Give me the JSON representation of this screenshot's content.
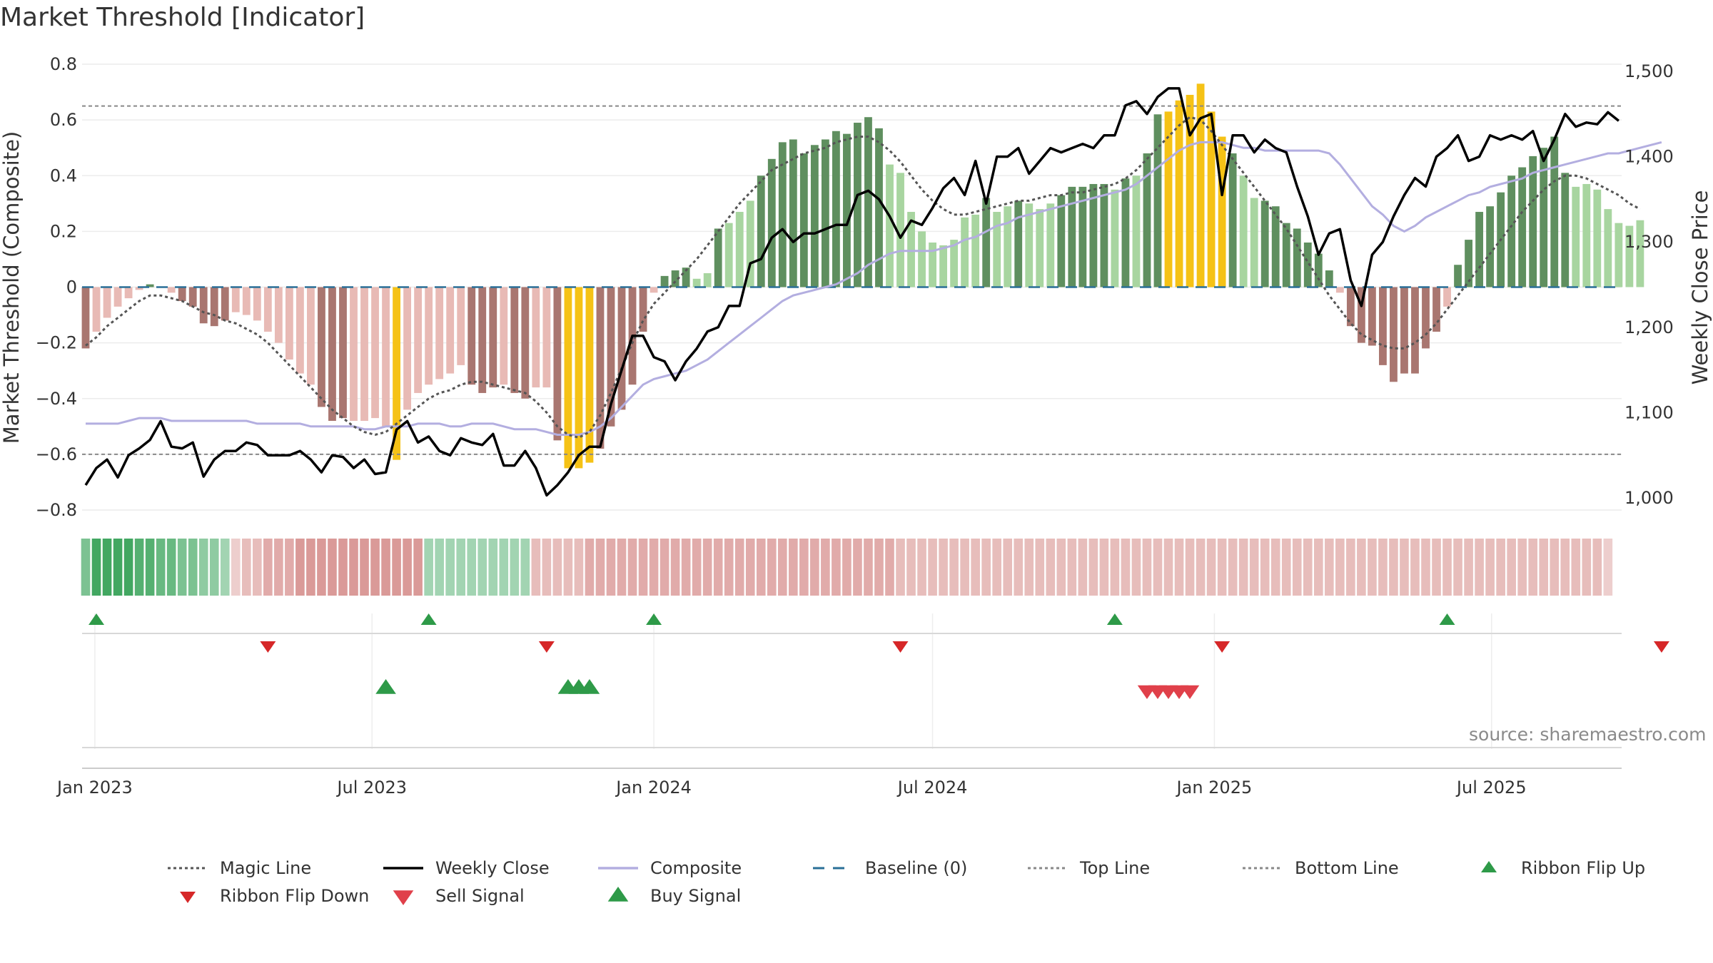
{
  "chart_data": {
    "type": "bar",
    "title": "Market Threshold [Indicator]",
    "source": "source: sharemaestro.com",
    "ylabel": "Market Threshold (Composite)",
    "y2label": "Weekly Close Price",
    "ylim": [
      -0.8,
      0.8
    ],
    "y2lim": [
      1000,
      1500
    ],
    "yticks": [
      "0.8",
      "0.6",
      "0.4",
      "0.2",
      "0",
      "−0.2",
      "−0.4",
      "−0.6",
      "−0.8"
    ],
    "y2ticks": [
      "1,500",
      "1,400",
      "1,300",
      "1,200",
      "1,100",
      "1,000"
    ],
    "xticks": [
      "Jan 2023",
      "Jul 2023",
      "Jan 2024",
      "Jul 2024",
      "Jan 2025",
      "Jul 2025"
    ],
    "top_line": 0.65,
    "bottom_line": -0.6,
    "baseline": 0,
    "start_date": "2022-12-26",
    "composite_bars": [
      -0.22,
      -0.16,
      -0.11,
      -0.07,
      -0.04,
      -0.01,
      0.01,
      0.0,
      -0.02,
      -0.05,
      -0.07,
      -0.13,
      -0.14,
      -0.12,
      -0.09,
      -0.1,
      -0.12,
      -0.16,
      -0.2,
      -0.26,
      -0.31,
      -0.35,
      -0.43,
      -0.48,
      -0.47,
      -0.48,
      -0.48,
      -0.47,
      -0.5,
      -0.62,
      -0.44,
      -0.38,
      -0.35,
      -0.33,
      -0.31,
      -0.28,
      -0.35,
      -0.38,
      -0.36,
      -0.35,
      -0.38,
      -0.4,
      -0.36,
      -0.36,
      -0.55,
      -0.65,
      -0.65,
      -0.63,
      -0.58,
      -0.5,
      -0.44,
      -0.35,
      -0.16,
      -0.02,
      0.04,
      0.06,
      0.07,
      0.03,
      0.05,
      0.21,
      0.23,
      0.27,
      0.31,
      0.4,
      0.46,
      0.52,
      0.53,
      0.48,
      0.51,
      0.53,
      0.56,
      0.55,
      0.59,
      0.61,
      0.57,
      0.44,
      0.41,
      0.27,
      0.2,
      0.16,
      0.15,
      0.17,
      0.25,
      0.26,
      0.32,
      0.27,
      0.29,
      0.31,
      0.3,
      0.28,
      0.3,
      0.33,
      0.36,
      0.36,
      0.37,
      0.37,
      0.35,
      0.39,
      0.4,
      0.48,
      0.62,
      0.63,
      0.67,
      0.69,
      0.73,
      0.63,
      0.54,
      0.48,
      0.4,
      0.32,
      0.31,
      0.29,
      0.23,
      0.21,
      0.16,
      0.12,
      0.06,
      -0.02,
      -0.14,
      -0.2,
      -0.21,
      -0.28,
      -0.34,
      -0.31,
      -0.31,
      -0.22,
      -0.16,
      -0.07,
      0.08,
      0.17,
      0.27,
      0.29,
      0.34,
      0.4,
      0.43,
      0.47,
      0.5,
      0.54,
      0.41,
      0.36,
      0.37,
      0.35,
      0.28,
      0.23,
      0.22,
      0.24
    ],
    "weekly_close": [
      1015,
      1035,
      1045,
      1024,
      1050,
      1058,
      1068,
      1090,
      1060,
      1058,
      1065,
      1025,
      1045,
      1055,
      1055,
      1065,
      1062,
      1050,
      1050,
      1050,
      1055,
      1045,
      1030,
      1050,
      1048,
      1035,
      1045,
      1028,
      1030,
      1080,
      1090,
      1065,
      1072,
      1055,
      1050,
      1070,
      1065,
      1062,
      1075,
      1038,
      1038,
      1055,
      1035,
      1003,
      1015,
      1030,
      1050,
      1060,
      1060,
      1110,
      1150,
      1190,
      1190,
      1165,
      1160,
      1138,
      1160,
      1175,
      1195,
      1200,
      1225,
      1225,
      1275,
      1280,
      1305,
      1315,
      1300,
      1310,
      1310,
      1315,
      1320,
      1320,
      1355,
      1360,
      1350,
      1330,
      1305,
      1325,
      1320,
      1340,
      1363,
      1375,
      1355,
      1395,
      1345,
      1400,
      1400,
      1410,
      1380,
      1395,
      1410,
      1405,
      1410,
      1415,
      1410,
      1425,
      1425,
      1460,
      1465,
      1450,
      1470,
      1480,
      1480,
      1425,
      1445,
      1450,
      1355,
      1425,
      1425,
      1405,
      1420,
      1410,
      1405,
      1365,
      1330,
      1285,
      1310,
      1315,
      1255,
      1225,
      1285,
      1300,
      1330,
      1355,
      1375,
      1365,
      1400,
      1410,
      1425,
      1395,
      1400,
      1425,
      1420,
      1425,
      1420,
      1430,
      1395,
      1420,
      1450,
      1435,
      1440,
      1438,
      1452,
      1442
    ],
    "magic_line": [
      -0.21,
      -0.18,
      -0.14,
      -0.11,
      -0.08,
      -0.05,
      -0.03,
      -0.03,
      -0.04,
      -0.05,
      -0.07,
      -0.09,
      -0.1,
      -0.12,
      -0.13,
      -0.15,
      -0.17,
      -0.2,
      -0.24,
      -0.28,
      -0.32,
      -0.36,
      -0.4,
      -0.44,
      -0.47,
      -0.5,
      -0.52,
      -0.53,
      -0.52,
      -0.49,
      -0.46,
      -0.43,
      -0.4,
      -0.38,
      -0.37,
      -0.35,
      -0.34,
      -0.34,
      -0.35,
      -0.36,
      -0.37,
      -0.38,
      -0.41,
      -0.45,
      -0.5,
      -0.53,
      -0.54,
      -0.52,
      -0.46,
      -0.38,
      -0.29,
      -0.2,
      -0.12,
      -0.06,
      -0.02,
      0.02,
      0.06,
      0.1,
      0.15,
      0.2,
      0.25,
      0.3,
      0.34,
      0.38,
      0.42,
      0.44,
      0.46,
      0.48,
      0.49,
      0.5,
      0.52,
      0.53,
      0.54,
      0.54,
      0.52,
      0.49,
      0.45,
      0.4,
      0.35,
      0.31,
      0.28,
      0.26,
      0.26,
      0.27,
      0.28,
      0.29,
      0.3,
      0.31,
      0.31,
      0.32,
      0.33,
      0.33,
      0.34,
      0.34,
      0.35,
      0.36,
      0.37,
      0.39,
      0.42,
      0.46,
      0.5,
      0.54,
      0.58,
      0.61,
      0.6,
      0.56,
      0.51,
      0.46,
      0.41,
      0.36,
      0.31,
      0.26,
      0.21,
      0.15,
      0.09,
      0.03,
      -0.03,
      -0.08,
      -0.13,
      -0.17,
      -0.19,
      -0.21,
      -0.22,
      -0.22,
      -0.2,
      -0.17,
      -0.13,
      -0.08,
      -0.03,
      0.02,
      0.07,
      0.12,
      0.17,
      0.22,
      0.27,
      0.31,
      0.35,
      0.38,
      0.4,
      0.4,
      0.39,
      0.37,
      0.35,
      0.33,
      0.3,
      0.28
    ],
    "composite_line": [
      -0.49,
      -0.49,
      -0.49,
      -0.49,
      -0.48,
      -0.47,
      -0.47,
      -0.47,
      -0.48,
      -0.48,
      -0.48,
      -0.48,
      -0.48,
      -0.48,
      -0.48,
      -0.48,
      -0.49,
      -0.49,
      -0.49,
      -0.49,
      -0.49,
      -0.5,
      -0.5,
      -0.5,
      -0.5,
      -0.5,
      -0.51,
      -0.51,
      -0.5,
      -0.5,
      -0.5,
      -0.49,
      -0.49,
      -0.49,
      -0.5,
      -0.5,
      -0.49,
      -0.49,
      -0.49,
      -0.5,
      -0.51,
      -0.51,
      -0.51,
      -0.52,
      -0.53,
      -0.53,
      -0.53,
      -0.52,
      -0.5,
      -0.47,
      -0.43,
      -0.39,
      -0.35,
      -0.33,
      -0.32,
      -0.31,
      -0.3,
      -0.28,
      -0.26,
      -0.23,
      -0.2,
      -0.17,
      -0.14,
      -0.11,
      -0.08,
      -0.05,
      -0.03,
      -0.02,
      -0.01,
      0.0,
      0.01,
      0.03,
      0.05,
      0.08,
      0.1,
      0.12,
      0.13,
      0.13,
      0.13,
      0.13,
      0.14,
      0.15,
      0.17,
      0.18,
      0.2,
      0.22,
      0.23,
      0.25,
      0.26,
      0.27,
      0.28,
      0.29,
      0.3,
      0.31,
      0.32,
      0.33,
      0.34,
      0.35,
      0.37,
      0.4,
      0.43,
      0.46,
      0.49,
      0.51,
      0.52,
      0.52,
      0.52,
      0.51,
      0.5,
      0.5,
      0.49,
      0.49,
      0.49,
      0.49,
      0.49,
      0.49,
      0.48,
      0.44,
      0.39,
      0.34,
      0.29,
      0.26,
      0.22,
      0.2,
      0.22,
      0.25,
      0.27,
      0.29,
      0.31,
      0.33,
      0.34,
      0.36,
      0.37,
      0.38,
      0.39,
      0.41,
      0.42,
      0.43,
      0.44,
      0.45,
      0.46,
      0.47,
      0.48,
      0.48,
      0.49,
      0.5,
      0.51,
      0.52
    ],
    "highlight_bars": [
      29,
      45,
      46,
      47,
      101,
      102,
      103,
      104,
      105,
      106
    ],
    "ribbon": [
      5,
      8,
      8,
      8,
      8,
      7,
      7,
      6,
      6,
      5,
      5,
      4,
      4,
      3,
      -1,
      -2,
      -2,
      -3,
      -3,
      -3,
      -4,
      -4,
      -4,
      -4,
      -4,
      -4,
      -4,
      -4,
      -4,
      -4,
      -4,
      -4,
      3,
      3,
      3,
      3,
      3,
      3,
      3,
      3,
      3,
      3,
      -2,
      -2,
      -2,
      -2,
      -2,
      -3,
      -3,
      -3,
      -3,
      -3,
      -3,
      -3,
      -3,
      -3,
      -3,
      -3,
      -3,
      -3,
      -3,
      -3,
      -3,
      -3,
      -3,
      -3,
      -3,
      -3,
      -3,
      -3,
      -3,
      -3,
      -3,
      -3,
      -3,
      -3,
      -2,
      -2,
      -2,
      -2,
      -2,
      -2,
      -2,
      -2,
      -2,
      -2,
      -2,
      -2,
      -2,
      -2,
      -2,
      -2,
      -2,
      -2,
      -2,
      -2,
      -2,
      -2,
      -2,
      -2,
      -2,
      -2,
      -2,
      -2,
      -2,
      -2,
      -2,
      -2,
      -2,
      -2,
      -2,
      -2,
      -2,
      -2,
      -2,
      -2,
      -2,
      -2,
      -2,
      -2,
      -2,
      -2,
      -2,
      -2,
      -2,
      -2,
      -2,
      -2,
      -2,
      -2,
      -2,
      -2,
      -2,
      -2,
      -2,
      -2,
      -2,
      -2,
      -2,
      -2,
      -2,
      -2,
      -1
    ],
    "ribbon_flip_up": [
      "2023-01-02",
      "2023-08-07",
      "2024-01-01",
      "2024-10-28",
      "2025-06-02"
    ],
    "ribbon_flip_down": [
      "2023-04-24",
      "2023-10-23",
      "2024-06-10",
      "2025-01-06",
      "2025-10-20"
    ],
    "buy_signals": [
      "2023-07-10",
      "2023-11-06",
      "2023-11-13",
      "2023-11-20"
    ],
    "sell_signals": [
      "2024-11-18",
      "2024-11-25",
      "2024-12-02",
      "2024-12-09",
      "2024-12-16"
    ],
    "legend": [
      {
        "label": "Magic Line",
        "style": "dotted",
        "color": "#555555"
      },
      {
        "label": "Weekly Close",
        "style": "solid",
        "color": "#000000"
      },
      {
        "label": "Composite",
        "style": "solid",
        "color": "#b3aee0"
      },
      {
        "label": "Baseline (0)",
        "style": "dashed",
        "color": "#2a6f97"
      },
      {
        "label": "Top Line",
        "style": "dotted",
        "color": "#888888"
      },
      {
        "label": "Bottom Line",
        "style": "dotted",
        "color": "#888888"
      },
      {
        "label": "Ribbon Flip Up",
        "style": "triangle-up",
        "color": "#2e9a48"
      },
      {
        "label": "Ribbon Flip Down",
        "style": "triangle-down",
        "color": "#d62728"
      },
      {
        "label": "Sell Signal",
        "style": "triangle-down",
        "color": "#e0404a"
      },
      {
        "label": "Buy Signal",
        "style": "triangle-up",
        "color": "#2e9a48"
      }
    ],
    "colors": {
      "pos_strong": "#5f8f5f",
      "pos_weak": "#a8d5a0",
      "neg_strong": "#a97670",
      "neg_weak": "#e8bab5",
      "highlight": "#f5c216",
      "ribbon_green": "#3ea55e",
      "ribbon_red": "#c0504d"
    }
  }
}
